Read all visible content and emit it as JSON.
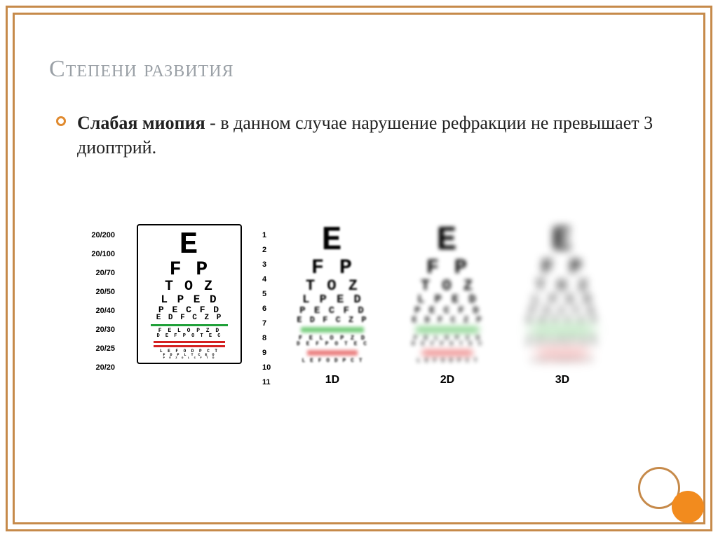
{
  "title": "Степени развития",
  "bullet_bold": "Слабая миопия",
  "bullet_rest": " - в данном случае нарушение рефракции не превышает 3 диоптрий.",
  "snellen": {
    "left_labels": [
      "20/200",
      "20/100",
      "20/70",
      "20/50",
      "20/40",
      "20/30",
      "20/25",
      "20/20"
    ],
    "right_nums": [
      "1",
      "2",
      "3",
      "4",
      "5",
      "6",
      "7",
      "8",
      "9",
      "10",
      "11"
    ],
    "rows": [
      {
        "text": "E",
        "size": 44
      },
      {
        "text": "F P",
        "size": 28
      },
      {
        "text": "T O Z",
        "size": 20
      },
      {
        "text": "L P E D",
        "size": 16
      },
      {
        "text": "P E C F D",
        "size": 13
      },
      {
        "text": "E D F C Z P",
        "size": 11
      },
      {
        "text": "F E L O P Z D",
        "size": 8
      },
      {
        "text": "D E F P O T E C",
        "size": 7
      },
      {
        "text": "L E F O D P C T",
        "size": 6
      },
      {
        "text": "F D P L T C E O",
        "size": 5
      },
      {
        "text": "P E Z O L C F T D",
        "size": 4
      }
    ]
  },
  "blur_charts": [
    {
      "caption": "1D",
      "blur_class": "blur1"
    },
    {
      "caption": "2D",
      "blur_class": "blur2"
    },
    {
      "caption": "3D",
      "blur_class": "blur3"
    }
  ],
  "blur_rows": [
    {
      "text": "E",
      "size": 48
    },
    {
      "text": "F P",
      "size": 30
    },
    {
      "text": "T O Z",
      "size": 22
    },
    {
      "text": "L P E D",
      "size": 17
    },
    {
      "text": "P E C F D",
      "size": 14
    },
    {
      "text": "E D F C Z P",
      "size": 12
    },
    {
      "text": "F E L O P Z D",
      "size": 9
    },
    {
      "text": "D E F P O T E C",
      "size": 8
    }
  ],
  "colors": {
    "frame": "#c68a4a",
    "title": "#9aa0a6",
    "bullet_ring": "#e08a2f",
    "green": "#1fa038",
    "red": "#d42020",
    "accent_circle": "#f28b1e"
  }
}
